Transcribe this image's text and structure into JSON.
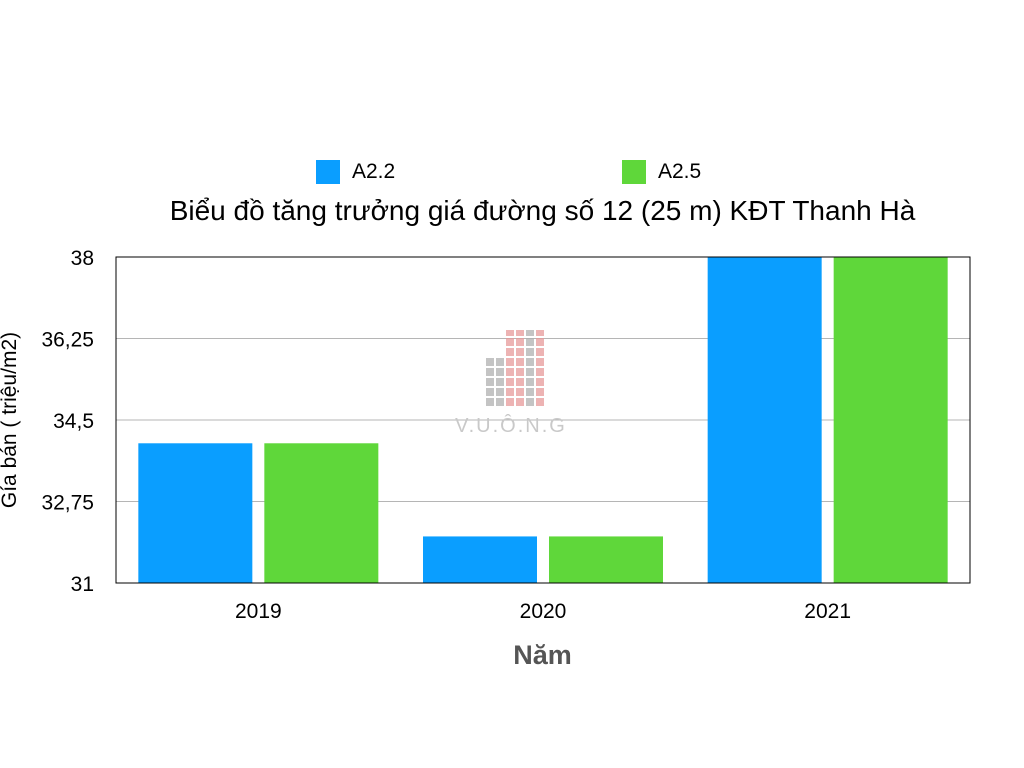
{
  "chart_data": {
    "type": "bar",
    "title": "Biểu đồ tăng trưởng giá đường số 12 (25 m) KĐT Thanh Hà",
    "xlabel": "Năm",
    "ylabel": "Gía bán ( triệu/m2)",
    "categories": [
      "2019",
      "2020",
      "2021"
    ],
    "series": [
      {
        "name": "A2.2",
        "color": "#0A9EFF",
        "values": [
          34.0,
          32.0,
          38.0
        ]
      },
      {
        "name": "A2.5",
        "color": "#5FD73A",
        "values": [
          34.0,
          32.0,
          38.0
        ]
      }
    ],
    "ylim": [
      31,
      38
    ],
    "yticks": [
      "31",
      "32,75",
      "34,5",
      "36,25",
      "38"
    ],
    "ytick_values": [
      31,
      32.75,
      34.5,
      36.25,
      38
    ],
    "grid": true,
    "legend_position": "top"
  },
  "watermark": {
    "text": "V.U.Ô.N.G",
    "brand": "VUONG"
  }
}
